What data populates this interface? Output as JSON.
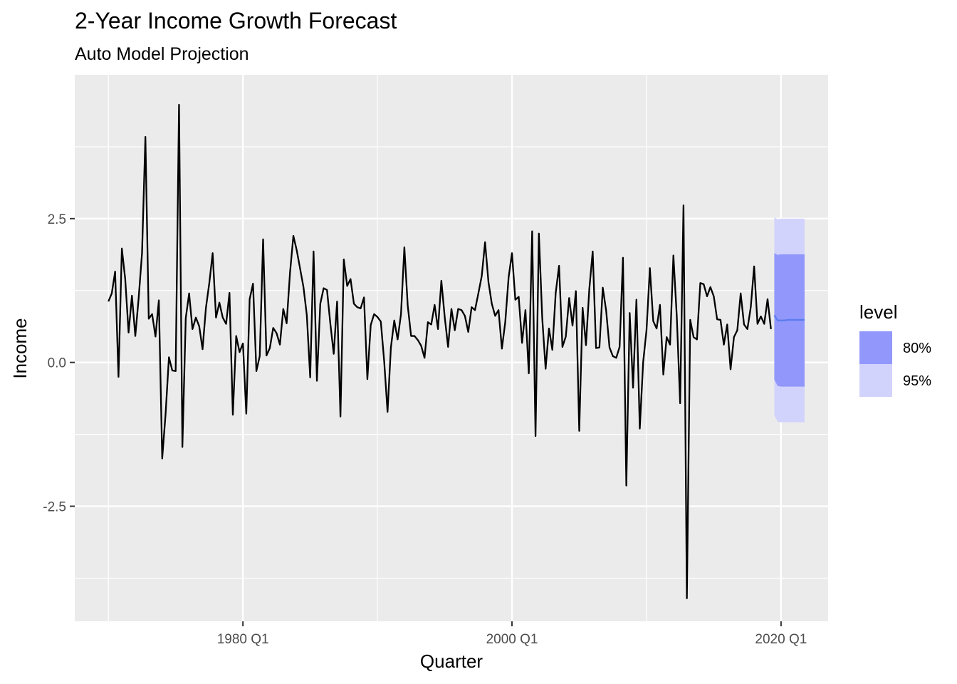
{
  "chart_data": {
    "type": "line",
    "title": "2-Year Income Growth Forecast",
    "subtitle": "Auto Model Projection",
    "xlabel": "Quarter",
    "ylabel": "Income",
    "x_ticks": [
      {
        "year": 1980,
        "label": "1980 Q1"
      },
      {
        "year": 2000,
        "label": "2000 Q1"
      },
      {
        "year": 2020,
        "label": "2020 Q1"
      }
    ],
    "y_ticks": [
      {
        "value": 2.5,
        "label": "2.5"
      },
      {
        "value": 0.0,
        "label": "0.0"
      },
      {
        "value": -2.5,
        "label": "-2.5"
      }
    ],
    "xlim": [
      1967.5,
      2023.5
    ],
    "ylim": [
      -4.5,
      5.0
    ],
    "grid": true,
    "colors": {
      "panel": "#ebebeb",
      "grid": "#ffffff",
      "history": "#000000",
      "forecast": "#5a7cf0",
      "band80": "#9297fb",
      "band95": "#d2d3fc"
    },
    "history": {
      "name": "Income",
      "start_year": 1970,
      "values": [
        1.06,
        1.2,
        1.58,
        -0.25,
        1.98,
        1.45,
        0.52,
        1.16,
        0.46,
        1.12,
        1.9,
        3.92,
        0.76,
        0.84,
        0.45,
        1.08,
        -1.67,
        -0.9,
        0.09,
        -0.14,
        -0.15,
        4.48,
        -1.47,
        0.77,
        1.2,
        0.58,
        0.78,
        0.63,
        0.23,
        0.95,
        1.38,
        1.9,
        0.78,
        1.04,
        0.78,
        0.67,
        1.21,
        -0.91,
        0.46,
        0.18,
        0.33,
        -0.89,
        1.1,
        1.37,
        -0.15,
        0.11,
        2.14,
        0.12,
        0.25,
        0.6,
        0.51,
        0.31,
        0.93,
        0.68,
        1.56,
        2.2,
        1.95,
        1.63,
        1.31,
        0.82,
        -0.26,
        1.93,
        -0.32,
        1.02,
        1.29,
        1.26,
        0.67,
        0.15,
        1.06,
        -0.94,
        1.79,
        1.33,
        1.45,
        1.02,
        0.96,
        0.94,
        1.13,
        -0.29,
        0.65,
        0.84,
        0.79,
        0.71,
        0.02,
        -0.86,
        0.26,
        0.73,
        0.4,
        0.84,
        2.0,
        0.99,
        0.46,
        0.46,
        0.39,
        0.29,
        0.08,
        0.7,
        0.66,
        1.0,
        0.58,
        1.42,
        0.79,
        0.27,
        0.93,
        0.56,
        0.93,
        0.91,
        0.81,
        0.53,
        0.96,
        0.91,
        1.2,
        1.5,
        2.09,
        1.4,
        1.02,
        0.81,
        0.91,
        0.24,
        0.7,
        1.48,
        1.9,
        1.09,
        1.14,
        0.34,
        0.91,
        -0.19,
        2.28,
        -1.28,
        2.24,
        0.77,
        -0.11,
        0.59,
        0.22,
        1.21,
        1.68,
        0.27,
        0.45,
        1.12,
        0.64,
        1.24,
        -1.19,
        0.95,
        0.3,
        1.28,
        1.93,
        0.25,
        0.26,
        1.3,
        0.9,
        0.26,
        0.11,
        0.08,
        0.27,
        1.82,
        -2.14,
        0.86,
        -0.44,
        1.09,
        -1.15,
        0.0,
        0.56,
        1.64,
        0.72,
        0.59,
        1.0,
        -0.21,
        0.44,
        0.31,
        1.86,
        0.8,
        -0.71,
        2.73,
        -4.1,
        0.74,
        0.44,
        0.4,
        1.38,
        1.36,
        1.15,
        1.31,
        1.15,
        0.75,
        0.74,
        0.31,
        0.66,
        -0.12,
        0.44,
        0.56,
        1.2,
        0.66,
        0.58,
        0.96,
        1.67,
        0.67,
        0.8,
        0.67,
        1.1,
        0.58
      ]
    },
    "forecast": {
      "start_year": 2019.5,
      "values": [
        0.82,
        0.73,
        0.73,
        0.73,
        0.74,
        0.74,
        0.74,
        0.74,
        0.74,
        0.74
      ],
      "upper80": [
        1.9,
        1.87,
        1.88,
        1.88,
        1.88,
        1.88,
        1.88,
        1.88,
        1.88,
        1.88
      ],
      "lower80": [
        -0.3,
        -0.41,
        -0.42,
        -0.42,
        -0.42,
        -0.42,
        -0.42,
        -0.42,
        -0.42,
        -0.42
      ],
      "upper95": [
        2.52,
        2.49,
        2.5,
        2.5,
        2.5,
        2.5,
        2.5,
        2.5,
        2.5,
        2.5
      ],
      "lower95": [
        -0.92,
        -1.03,
        -1.04,
        -1.04,
        -1.04,
        -1.04,
        -1.04,
        -1.04,
        -1.04,
        -1.04
      ]
    },
    "legend": {
      "title": "level",
      "placement": "right",
      "entries": [
        {
          "label": "80%",
          "color": "#9297fb"
        },
        {
          "label": "95%",
          "color": "#d2d3fc"
        }
      ]
    }
  }
}
